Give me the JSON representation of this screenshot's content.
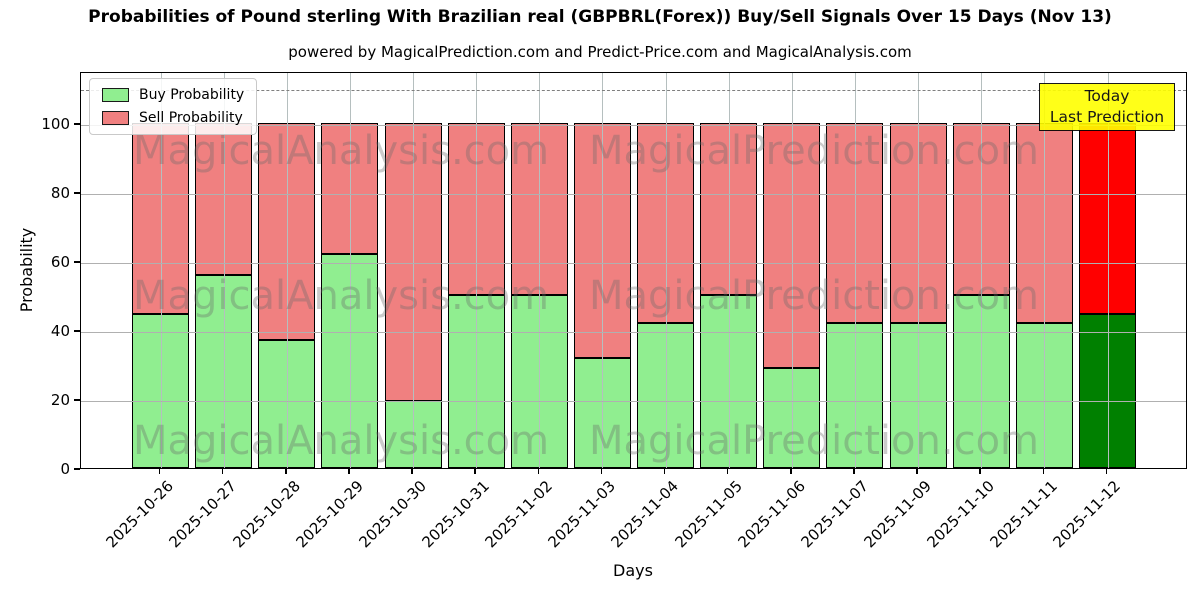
{
  "title": "Probabilities of Pound sterling With Brazilian real (GBPBRL(Forex)) Buy/Sell Signals Over 15 Days (Nov 13)",
  "subtitle": "powered by MagicalPrediction.com and Predict-Price.com and MagicalAnalysis.com",
  "axes": {
    "y_label": "Probability",
    "x_label": "Days",
    "y_ticks": [
      0,
      20,
      40,
      60,
      80,
      100
    ],
    "threshold_line": 110
  },
  "legend": {
    "items": [
      {
        "label": "Buy Probability",
        "color": "#90ee90"
      },
      {
        "label": "Sell Probability",
        "color": "#f08080"
      }
    ]
  },
  "annotation": {
    "line1": "Today",
    "line2": "Last Prediction",
    "bg": "#ffff00"
  },
  "watermarks": [
    "MagicalAnalysis.com",
    "MagicalPrediction.com"
  ],
  "colors": {
    "buy": "#90ee90",
    "sell": "#f08080",
    "buy_today": "#008000",
    "sell_today": "#ff0000",
    "grid": "#b0b0b0",
    "threshold": "#7f7f7f",
    "annotation_bg": "#ffff00",
    "watermark": "#696969"
  },
  "chart_data": {
    "type": "bar",
    "stacked": true,
    "title": "Probabilities of Pound sterling With Brazilian real (GBPBRL(Forex)) Buy/Sell Signals Over 15 Days (Nov 13)",
    "xlabel": "Days",
    "ylabel": "Probability",
    "ylim": [
      0,
      115
    ],
    "grid": true,
    "legend_position": "upper left",
    "threshold_dashed_line_y": 110,
    "categories": [
      "2025-10-26",
      "2025-10-27",
      "2025-10-28",
      "2025-10-29",
      "2025-10-30",
      "2025-10-31",
      "2025-11-02",
      "2025-11-03",
      "2025-11-04",
      "2025-11-05",
      "2025-11-06",
      "2025-11-07",
      "2025-11-09",
      "2025-11-10",
      "2025-11-11",
      "2025-11-12"
    ],
    "series": [
      {
        "name": "Buy Probability",
        "values": [
          44.5,
          56,
          37,
          62,
          19.5,
          50,
          50,
          32,
          42,
          50,
          29,
          42,
          42,
          50,
          42,
          44.5
        ]
      },
      {
        "name": "Sell Probability",
        "values": [
          55.5,
          44,
          63,
          38,
          80.5,
          50,
          50,
          68,
          58,
          50,
          71,
          58,
          58,
          50,
          58,
          55.5
        ]
      }
    ],
    "today_bar_index": 15
  }
}
